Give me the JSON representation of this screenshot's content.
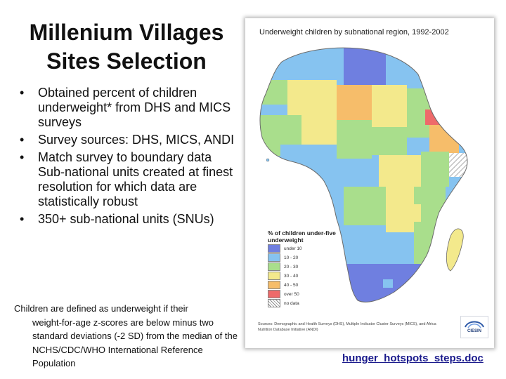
{
  "slide": {
    "title_line1": "Millenium Villages",
    "title_line2": "Sites Selection",
    "bullets": [
      "Obtained percent of children underweight* from DHS and MICS surveys",
      "Survey sources: DHS, MICS, ANDI",
      "Match survey to boundary data Sub-national units created at finest resolution for which data are statistically robust",
      "350+ sub-national units (SNUs)"
    ],
    "bullet_glyph": "•",
    "footnote_first_line": "Children are defined as underweight if their",
    "footnote_rest": "weight-for-age z-scores are below minus two standard deviations (-2 SD) from the median of the NCHS/CDC/WHO International Reference Population",
    "link_text": "hunger_hotspots_steps.doc"
  },
  "map": {
    "title": "Underweight children by subnational region, 1992-2002",
    "legend_title": "% of children under-five underweight",
    "legend": [
      {
        "label": "under 10",
        "color": "#6f7fe0"
      },
      {
        "label": "10 - 20",
        "color": "#86c3f0"
      },
      {
        "label": "20 - 30",
        "color": "#a9de8c"
      },
      {
        "label": "30 - 40",
        "color": "#f3e98c"
      },
      {
        "label": "40 - 50",
        "color": "#f6bd6a"
      },
      {
        "label": "over 50",
        "color": "#ee6a6a"
      },
      {
        "label": "no data",
        "color": "#ffffff"
      }
    ],
    "source_note": "Sources: Demographic and Health Surveys (DHS), Multiple Indicator Cluster Surveys (MICS), and Africa Nutrition Database Initiative (ANDI)",
    "logo_text": "CIESIN",
    "colors": {
      "under10": "#6f7fe0",
      "c10_20": "#86c3f0",
      "c20_30": "#a9de8c",
      "c30_40": "#f3e98c",
      "c40_50": "#f6bd6a",
      "over50": "#ee6a6a",
      "nodata": "#ffffff",
      "border": "#7a7a7a"
    }
  }
}
